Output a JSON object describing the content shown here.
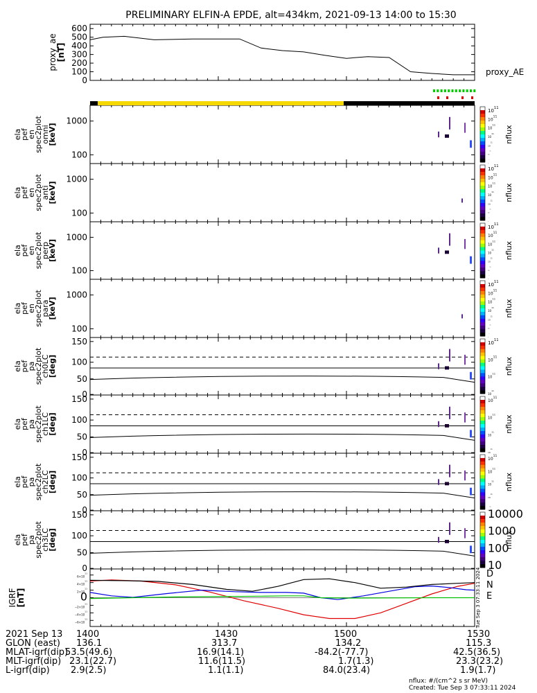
{
  "title": "PRELIMINARY ELFIN-A EPDE, alt=434km, 2021-09-13 14:00 to 15:30",
  "chart_data": [
    {
      "id": "proxy_ae",
      "type": "line",
      "ylabel": "proxy_ae",
      "yunit": "[nT]",
      "legend": "proxy_AE",
      "ylim": [
        0,
        650
      ],
      "yticks": [
        "600",
        "500",
        "400",
        "300",
        "200",
        "100",
        "0"
      ],
      "xlim": [
        0,
        90
      ],
      "x": [
        0,
        3,
        8,
        15,
        24,
        35,
        40,
        45,
        50,
        55,
        60,
        65,
        70,
        75,
        80,
        85,
        90
      ],
      "y": [
        470,
        500,
        510,
        470,
        480,
        480,
        375,
        345,
        330,
        290,
        255,
        275,
        265,
        100,
        80,
        65,
        65
      ]
    },
    {
      "id": "ela_pef_en_spec2plot_omni",
      "type": "heatmap",
      "ylabel": [
        "ela",
        "pef",
        "en",
        "spec2plot",
        "omni"
      ],
      "yunit": "[keV]",
      "yticks": [
        "1000",
        "100"
      ],
      "cbar_label": "nflux",
      "cbar_ticks": [
        "10^7",
        "10^6",
        "10^5",
        "10^4",
        "10^3",
        "10^2",
        "10^1"
      ]
    },
    {
      "id": "ela_pef_en_spec2plot_anti",
      "type": "heatmap",
      "ylabel": [
        "ela",
        "pef",
        "en",
        "spec2plot",
        "anti"
      ],
      "yunit": "[keV]",
      "yticks": [
        "1000",
        "100"
      ],
      "cbar_label": "nflux",
      "cbar_ticks": [
        "10^7",
        "10^6",
        "10^5",
        "10^4",
        "10^3",
        "10^2",
        "10^1"
      ]
    },
    {
      "id": "ela_pef_en_spec2plot_perp",
      "type": "heatmap",
      "ylabel": [
        "ela",
        "pef",
        "en",
        "spec2plot",
        "perp"
      ],
      "yunit": "[keV]",
      "yticks": [
        "1000",
        "100"
      ],
      "cbar_label": "nflux",
      "cbar_ticks": [
        "10^7",
        "10^6",
        "10^5",
        "10^4",
        "10^3",
        "10^2",
        "10^1"
      ]
    },
    {
      "id": "ela_pef_en_spec2plot_para",
      "type": "heatmap",
      "ylabel": [
        "ela",
        "pef",
        "en",
        "spec2plot",
        "para"
      ],
      "yunit": "[keV]",
      "yticks": [
        "1000",
        "100"
      ],
      "cbar_label": "nflux",
      "cbar_ticks": [
        "10^7",
        "10^6",
        "10^5",
        "10^4",
        "10^3",
        "10^2",
        "10^1"
      ]
    },
    {
      "id": "ela_pef_pa_spec2plot_ch0LC",
      "type": "heatmap",
      "ylabel": [
        "ela",
        "pef",
        "pa",
        "spec2plot",
        "ch0LC"
      ],
      "yunit": "[deg]",
      "yticks": [
        "150",
        "100",
        "50",
        "0"
      ],
      "cbar_label": "nflux",
      "cbar_ticks": [
        "10^7",
        "10^6",
        "10^5",
        "10^4"
      ]
    },
    {
      "id": "ela_pef_pa_spec2plot_ch1LC",
      "type": "heatmap",
      "ylabel": [
        "ela",
        "pef",
        "pa",
        "spec2plot",
        "ch1LC"
      ],
      "yunit": "[deg]",
      "yticks": [
        "150",
        "100",
        "50",
        "0"
      ],
      "cbar_label": "nflux",
      "cbar_ticks": [
        "10^6",
        "10^5",
        "10^4",
        "10^3"
      ]
    },
    {
      "id": "ela_pef_pa_spec2plot_ch2LC",
      "type": "heatmap",
      "ylabel": [
        "ela",
        "pef",
        "pa",
        "spec2plot",
        "ch2LC"
      ],
      "yunit": "[deg]",
      "yticks": [
        "150",
        "100",
        "50",
        "0"
      ],
      "cbar_label": "nflux",
      "cbar_ticks": [
        "10^6",
        "10^5",
        "10^4",
        "10^3",
        "10^2"
      ]
    },
    {
      "id": "ela_pef_pa_spec2plot_ch3LC",
      "type": "heatmap",
      "ylabel": [
        "ela",
        "pef",
        "pa",
        "spec2plot",
        "ch3LC"
      ],
      "yunit": "[deg]",
      "yticks": [
        "150",
        "100",
        "50",
        "0"
      ],
      "cbar_label": "nflux",
      "cbar_ticks": [
        "10000",
        "1000",
        "100",
        "10"
      ]
    },
    {
      "id": "igrf",
      "type": "line",
      "ylabel": "IGRF",
      "yunit": "[nT]",
      "ylim": [
        -65000,
        65000
      ],
      "yticks": [
        "6×10^4",
        "4×10^4",
        "2×10^4",
        "0",
        "−2×10^4",
        "−4×10^4",
        "−6×10^4"
      ],
      "xlim": [
        0,
        90
      ],
      "series": [
        {
          "name": "D",
          "color": "#e00000",
          "x": [
            0,
            5,
            12,
            20,
            28,
            36,
            44,
            50,
            56,
            62,
            68,
            74,
            80,
            86,
            90
          ],
          "y": [
            44000,
            47000,
            44000,
            34000,
            15000,
            -8000,
            -28000,
            -45000,
            -55000,
            -55000,
            -40000,
            -15000,
            10000,
            30000,
            38000
          ]
        },
        {
          "name": "N",
          "color": "#0000e0",
          "x": [
            0,
            5,
            10,
            18,
            26,
            34,
            40,
            46,
            50,
            54,
            58,
            64,
            70,
            76,
            80,
            84,
            88,
            90
          ],
          "y": [
            14000,
            5000,
            1000,
            11000,
            20000,
            16000,
            14000,
            14000,
            12000,
            0,
            -5000,
            5000,
            17000,
            29000,
            31000,
            27000,
            21000,
            20000
          ]
        },
        {
          "name": "E",
          "color": "#00c000",
          "x": [
            0,
            10,
            20,
            30,
            40,
            46,
            50,
            54,
            60,
            70,
            80,
            90
          ],
          "y": [
            -2000,
            0,
            2000,
            3000,
            4000,
            5000,
            5000,
            0,
            -1000,
            -500,
            0,
            0
          ]
        },
        {
          "name": "",
          "color": "#000000",
          "x": [
            0,
            8,
            16,
            24,
            32,
            38,
            44,
            50,
            56,
            62,
            68,
            74,
            80,
            86,
            90
          ],
          "y": [
            46000,
            45000,
            43000,
            35000,
            22000,
            17000,
            30000,
            48000,
            50000,
            40000,
            25000,
            28000,
            35000,
            38000,
            40000
          ]
        }
      ],
      "legend": [
        "D",
        "N",
        "E"
      ],
      "side_note": "Tue Sep 3 07:33:11 2024"
    }
  ],
  "footer": {
    "rows": [
      {
        "label": "2021 Sep 13",
        "values": [
          "1400",
          "1430",
          "1500",
          "1530"
        ]
      },
      {
        "label": "GLON (east)",
        "values": [
          "136.1",
          "313.7",
          "134.2",
          "115.3"
        ]
      },
      {
        "label": "MLAT-igrf(dip)",
        "values": [
          "53.5(49.6)",
          "16.9(14.1)",
          "-84.2(-77.7)",
          "42.5(36.5)"
        ]
      },
      {
        "label": "MLT-igrf(dip)",
        "values": [
          "23.1(22.7)",
          "11.6(11.5)",
          "1.7(1.3)",
          "23.3(23.2)"
        ]
      },
      {
        "label": "L-igrf(dip)",
        "values": [
          "2.9(2.5)",
          "1.1(1.1)",
          "84.0(23.4)",
          "1.9(1.7)"
        ]
      }
    ],
    "nflux_units": "nflux: #/(cm^2 s sr MeV)",
    "created": "Created: Tue Sep  3 07:33:11 2024"
  },
  "colors": {
    "sunlight_bar": "#f5d800",
    "shadow_bar": "#000000",
    "science_marks_green": "#00cc00",
    "science_marks_red": "#e00000"
  }
}
